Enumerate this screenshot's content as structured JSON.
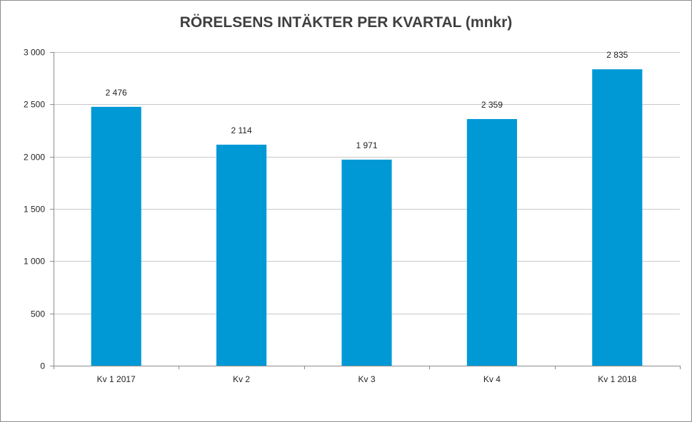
{
  "chart_data": {
    "type": "bar",
    "title": "RÖRELSENS INTÄKTER PER KVARTAL (mnkr)",
    "categories": [
      "Kv 1 2017",
      "Kv 2",
      "Kv 3",
      "Kv 4",
      "Kv 1 2018"
    ],
    "values": [
      2476,
      2114,
      1971,
      2359,
      2835
    ],
    "value_labels": [
      "2 476",
      "2 114",
      "1 971",
      "2 359",
      "2 835"
    ],
    "yticks": [
      0,
      500,
      1000,
      1500,
      2000,
      2500,
      3000
    ],
    "ytick_labels": [
      "0",
      "500",
      "1 000",
      "1 500",
      "2 000",
      "2 500",
      "3 000"
    ],
    "ylim": [
      0,
      3000
    ],
    "xlabel": "",
    "ylabel": "",
    "grid": true,
    "bar_color": "#0099d6"
  }
}
